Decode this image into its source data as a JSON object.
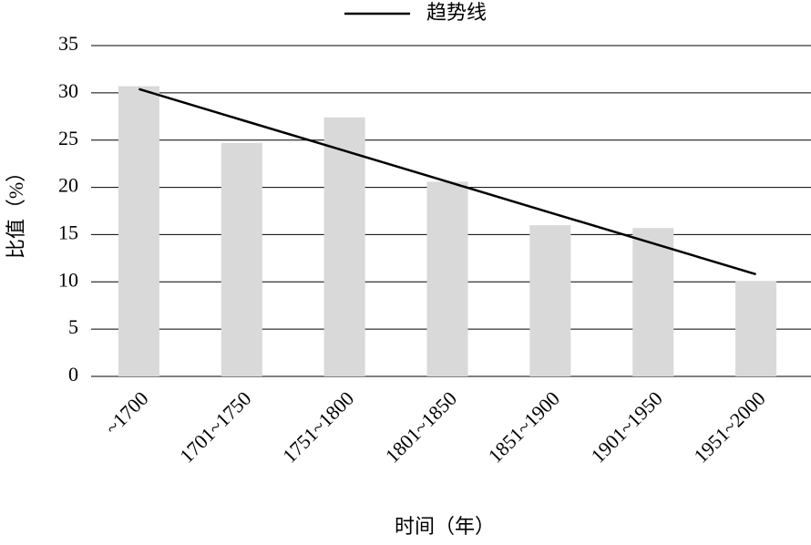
{
  "chart_data": {
    "type": "bar",
    "categories": [
      "~1700",
      "1701~1750",
      "1751~1800",
      "1801~1850",
      "1851~1900",
      "1901~1950",
      "1951~2000"
    ],
    "series": [
      {
        "type": "bar",
        "color": "#d9d9d9",
        "values": [
          30.7,
          24.7,
          27.4,
          20.6,
          16.0,
          15.7,
          10.1
        ]
      },
      {
        "type": "line",
        "name": "趋势线",
        "color": "#000000",
        "values": [
          30.4,
          27.13,
          23.87,
          20.6,
          17.33,
          14.07,
          10.8
        ]
      }
    ],
    "x_label": "时间（年）",
    "y_label": "比值（%）",
    "ylim": [
      0,
      35
    ],
    "yticks": [
      0,
      5,
      10,
      15,
      20,
      25,
      30,
      35
    ],
    "grid": true,
    "legend": "top"
  }
}
